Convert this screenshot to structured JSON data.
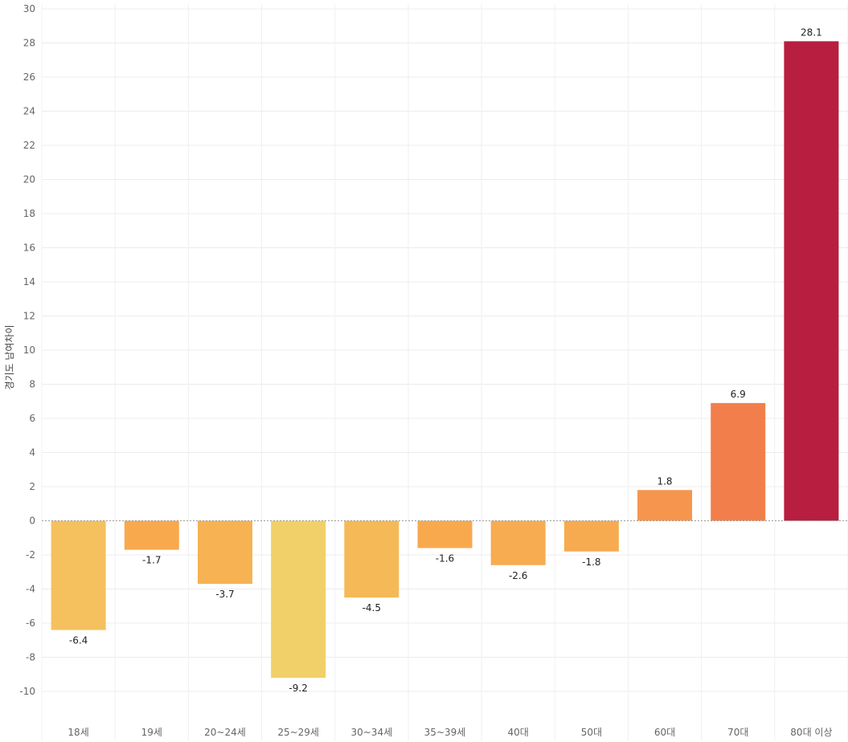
{
  "chart_data": {
    "type": "bar",
    "ylabel": "경기도 남여차이",
    "ylim": [
      -12,
      30
    ],
    "yticks": [
      -10,
      -8,
      -6,
      -4,
      -2,
      0,
      2,
      4,
      6,
      8,
      10,
      12,
      14,
      16,
      18,
      20,
      22,
      24,
      26,
      28,
      30
    ],
    "grid": true,
    "categories": [
      "18세",
      "19세",
      "20~24세",
      "25~29세",
      "30~34세",
      "35~39세",
      "40대",
      "50대",
      "60대",
      "70대",
      "80대 이상"
    ],
    "values": [
      -6.4,
      -1.7,
      -3.7,
      -9.2,
      -4.5,
      -1.6,
      -2.6,
      -1.8,
      1.8,
      6.9,
      28.1
    ],
    "value_labels": [
      "-6.4",
      "-1.7",
      "-3.7",
      "-9.2",
      "-4.5",
      "-1.6",
      "-2.6",
      "-1.8",
      "1.8",
      "6.9",
      "28.1"
    ],
    "colors": [
      "#F4C15E",
      "#F8A94E",
      "#F6B253",
      "#F1D06A",
      "#F5B957",
      "#F8A94E",
      "#F7AC51",
      "#F7AB50",
      "#F6964E",
      "#F27F4B",
      "#B81E3F"
    ]
  }
}
